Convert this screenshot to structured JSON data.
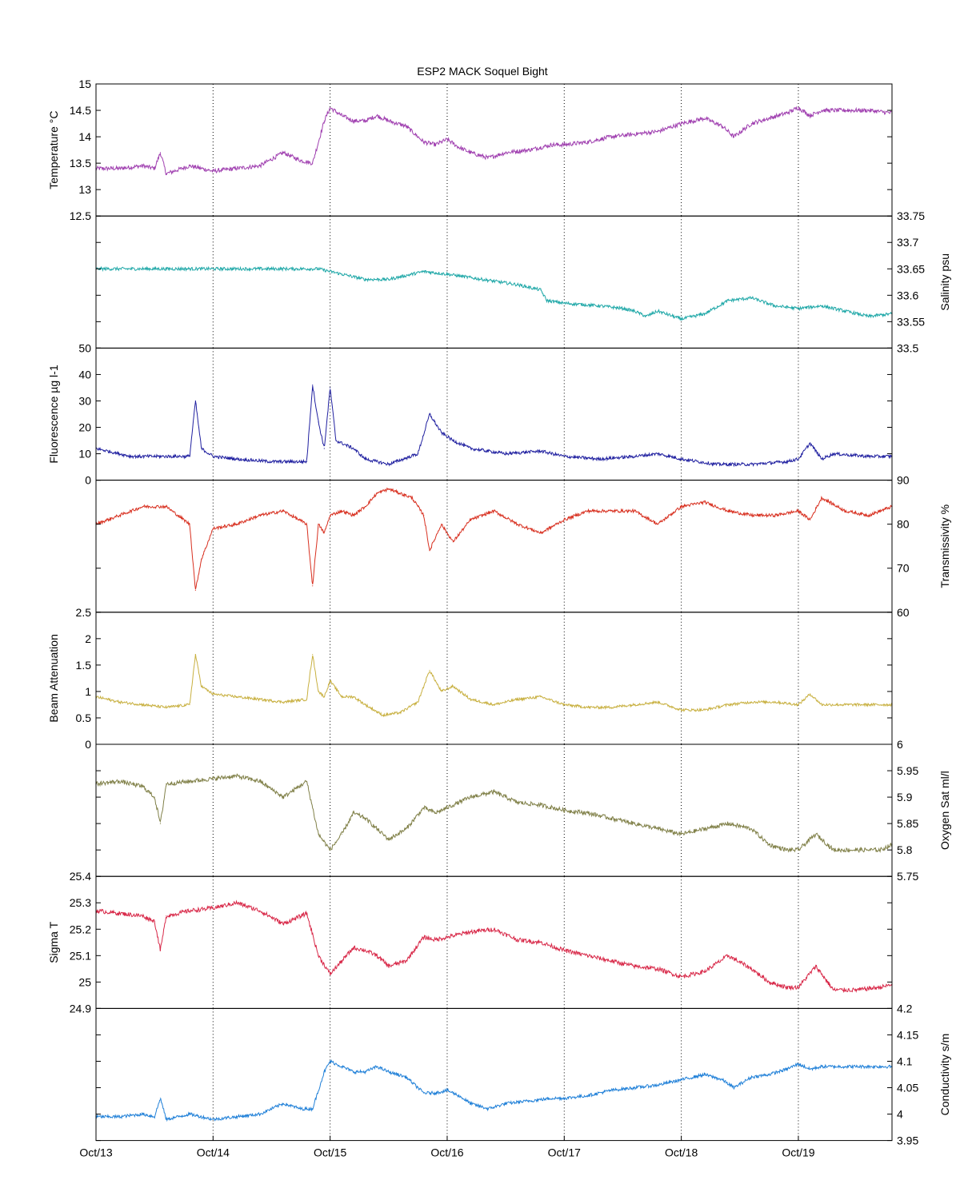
{
  "chart_data": {
    "type": "line",
    "title": "ESP2 MACK  Soquel Bight",
    "x_ticks": [
      "Oct/13",
      "Oct/14",
      "Oct/15",
      "Oct/16",
      "Oct/17",
      "Oct/18",
      "Oct/19"
    ],
    "x_range_days": [
      13.0,
      19.8
    ],
    "grid": "vertical dotted lines at each day",
    "panels": [
      {
        "key": "temperature",
        "ylabel": "Temperature °C",
        "axis_side": "left",
        "ylim": [
          12.5,
          15
        ],
        "yticks": [
          "12.5",
          "13",
          "13.5",
          "14",
          "14.5",
          "15"
        ],
        "color": "#a040b0",
        "noise": 0.04,
        "x": [
          13.0,
          13.2,
          13.4,
          13.5,
          13.55,
          13.6,
          13.8,
          14.0,
          14.2,
          14.4,
          14.6,
          14.75,
          14.85,
          14.95,
          15.0,
          15.1,
          15.2,
          15.3,
          15.4,
          15.5,
          15.65,
          15.8,
          15.9,
          16.0,
          16.1,
          16.2,
          16.35,
          16.5,
          16.7,
          16.9,
          17.0,
          17.2,
          17.4,
          17.6,
          17.8,
          18.0,
          18.2,
          18.35,
          18.45,
          18.6,
          18.75,
          18.9,
          19.0,
          19.1,
          19.2,
          19.4,
          19.6,
          19.8
        ],
        "y": [
          13.4,
          13.4,
          13.45,
          13.4,
          13.7,
          13.3,
          13.45,
          13.35,
          13.4,
          13.45,
          13.7,
          13.55,
          13.5,
          14.3,
          14.55,
          14.4,
          14.3,
          14.3,
          14.4,
          14.3,
          14.2,
          13.9,
          13.85,
          13.95,
          13.8,
          13.7,
          13.6,
          13.7,
          13.75,
          13.85,
          13.85,
          13.9,
          14.0,
          14.05,
          14.1,
          14.25,
          14.35,
          14.2,
          14.0,
          14.25,
          14.35,
          14.45,
          14.55,
          14.4,
          14.5,
          14.5,
          14.5,
          14.45
        ]
      },
      {
        "key": "salinity",
        "ylabel": "Salinity psu",
        "axis_side": "right",
        "ylim": [
          33.5,
          33.75
        ],
        "yticks": [
          "33.5",
          "33.55",
          "33.6",
          "33.65",
          "33.7",
          "33.75"
        ],
        "color": "#20a8a8",
        "noise": 0.003,
        "x": [
          13.0,
          13.5,
          14.0,
          14.5,
          14.9,
          15.1,
          15.3,
          15.5,
          15.8,
          16.0,
          16.3,
          16.6,
          16.8,
          16.85,
          17.0,
          17.3,
          17.5,
          17.6,
          17.7,
          17.8,
          18.0,
          18.2,
          18.4,
          18.6,
          18.8,
          19.0,
          19.2,
          19.4,
          19.6,
          19.8
        ],
        "y": [
          33.65,
          33.65,
          33.65,
          33.65,
          33.65,
          33.64,
          33.63,
          33.63,
          33.645,
          33.64,
          33.63,
          33.62,
          33.61,
          33.59,
          33.585,
          33.58,
          33.575,
          33.57,
          33.56,
          33.57,
          33.555,
          33.565,
          33.59,
          33.595,
          33.58,
          33.575,
          33.58,
          33.57,
          33.56,
          33.565
        ]
      },
      {
        "key": "fluorescence",
        "ylabel": "Fluorescence µg l-1",
        "axis_side": "left",
        "ylim": [
          0,
          50
        ],
        "yticks": [
          "0",
          "10",
          "20",
          "30",
          "40",
          "50"
        ],
        "color": "#2020a0",
        "noise": 0.6,
        "x": [
          13.0,
          13.3,
          13.5,
          13.8,
          13.85,
          13.9,
          14.0,
          14.2,
          14.5,
          14.8,
          14.85,
          14.9,
          14.95,
          15.0,
          15.05,
          15.2,
          15.3,
          15.5,
          15.75,
          15.85,
          15.95,
          16.05,
          16.2,
          16.5,
          16.8,
          17.0,
          17.3,
          17.6,
          17.8,
          18.0,
          18.3,
          18.6,
          18.9,
          19.0,
          19.1,
          19.2,
          19.3,
          19.6,
          19.8
        ],
        "y": [
          12,
          9,
          9,
          9,
          30,
          12,
          9,
          8,
          7,
          7,
          36,
          22,
          12,
          35,
          15,
          12,
          8,
          6,
          10,
          25,
          18,
          15,
          12,
          10,
          11,
          9,
          8,
          9,
          10,
          8,
          6,
          6,
          7,
          8,
          14,
          8,
          10,
          9,
          9
        ]
      },
      {
        "key": "transmissivity",
        "ylabel": "Transmissivity %",
        "axis_side": "right",
        "ylim": [
          60,
          90
        ],
        "yticks": [
          "60",
          "70",
          "80",
          "90"
        ],
        "color": "#d83020",
        "noise": 0.35,
        "x": [
          13.0,
          13.2,
          13.4,
          13.6,
          13.8,
          13.85,
          13.9,
          14.0,
          14.2,
          14.4,
          14.6,
          14.8,
          14.85,
          14.9,
          14.95,
          15.0,
          15.1,
          15.2,
          15.3,
          15.4,
          15.5,
          15.7,
          15.8,
          15.85,
          15.95,
          16.05,
          16.2,
          16.4,
          16.6,
          16.8,
          17.0,
          17.2,
          17.4,
          17.6,
          17.8,
          18.0,
          18.2,
          18.4,
          18.6,
          18.8,
          19.0,
          19.1,
          19.2,
          19.4,
          19.6,
          19.8
        ],
        "y": [
          80,
          82,
          84,
          84,
          80,
          65,
          72,
          79,
          80,
          82,
          83,
          80,
          66,
          80,
          78,
          82,
          83,
          82,
          84,
          87,
          88,
          86,
          82,
          74,
          80,
          76,
          81,
          83,
          80,
          78,
          81,
          83,
          83,
          83,
          80,
          84,
          85,
          83,
          82,
          82,
          83,
          81,
          86,
          83,
          82,
          84
        ]
      },
      {
        "key": "beam_attenuation",
        "ylabel": "Beam Attenuation",
        "axis_side": "left",
        "ylim": [
          0,
          2.5
        ],
        "yticks": [
          "0",
          "0.5",
          "1",
          "1.5",
          "2",
          "2.5"
        ],
        "color": "#c8b040",
        "noise": 0.025,
        "x": [
          13.0,
          13.2,
          13.4,
          13.6,
          13.8,
          13.85,
          13.9,
          14.0,
          14.2,
          14.4,
          14.6,
          14.8,
          14.85,
          14.9,
          14.95,
          15.0,
          15.1,
          15.2,
          15.3,
          15.45,
          15.6,
          15.75,
          15.85,
          15.95,
          16.05,
          16.2,
          16.4,
          16.6,
          16.8,
          17.0,
          17.2,
          17.4,
          17.6,
          17.8,
          18.0,
          18.2,
          18.4,
          18.6,
          18.8,
          19.0,
          19.1,
          19.2,
          19.4,
          19.6,
          19.8
        ],
        "y": [
          0.9,
          0.8,
          0.75,
          0.7,
          0.75,
          1.7,
          1.1,
          0.95,
          0.9,
          0.85,
          0.8,
          0.85,
          1.7,
          1.0,
          0.9,
          1.2,
          0.9,
          0.9,
          0.75,
          0.55,
          0.6,
          0.8,
          1.4,
          1.0,
          1.1,
          0.85,
          0.75,
          0.85,
          0.9,
          0.75,
          0.7,
          0.7,
          0.75,
          0.8,
          0.65,
          0.65,
          0.75,
          0.8,
          0.8,
          0.75,
          0.95,
          0.75,
          0.75,
          0.75,
          0.75
        ]
      },
      {
        "key": "oxygen_sat",
        "ylabel": "Oxygen Sat ml/l",
        "axis_side": "right",
        "ylim": [
          5.75,
          6
        ],
        "yticks": [
          "5.75",
          "5.8",
          "5.85",
          "5.9",
          "5.95",
          "6"
        ],
        "color": "#808048",
        "noise": 0.004,
        "x": [
          13.0,
          13.2,
          13.4,
          13.5,
          13.55,
          13.6,
          13.8,
          14.0,
          14.2,
          14.4,
          14.6,
          14.8,
          14.9,
          15.0,
          15.1,
          15.2,
          15.3,
          15.4,
          15.5,
          15.65,
          15.8,
          15.9,
          16.0,
          16.2,
          16.4,
          16.6,
          16.8,
          17.0,
          17.2,
          17.4,
          17.6,
          17.8,
          18.0,
          18.2,
          18.4,
          18.6,
          18.75,
          18.9,
          19.0,
          19.15,
          19.3,
          19.5,
          19.7,
          19.8
        ],
        "y": [
          5.925,
          5.93,
          5.92,
          5.9,
          5.85,
          5.925,
          5.93,
          5.935,
          5.94,
          5.93,
          5.9,
          5.93,
          5.83,
          5.8,
          5.83,
          5.87,
          5.86,
          5.84,
          5.82,
          5.84,
          5.88,
          5.87,
          5.88,
          5.9,
          5.91,
          5.89,
          5.885,
          5.875,
          5.87,
          5.86,
          5.85,
          5.84,
          5.83,
          5.84,
          5.85,
          5.84,
          5.81,
          5.8,
          5.8,
          5.83,
          5.8,
          5.8,
          5.8,
          5.81
        ]
      },
      {
        "key": "sigma_t",
        "ylabel": "Sigma T",
        "axis_side": "left",
        "ylim": [
          24.9,
          25.4
        ],
        "yticks": [
          "24.9",
          "25",
          "25.1",
          "25.2",
          "25.3",
          "25.4"
        ],
        "color": "#d82848",
        "noise": 0.008,
        "x": [
          13.0,
          13.2,
          13.4,
          13.5,
          13.55,
          13.6,
          13.8,
          14.0,
          14.2,
          14.4,
          14.6,
          14.8,
          14.9,
          15.0,
          15.1,
          15.2,
          15.3,
          15.4,
          15.5,
          15.65,
          15.8,
          15.9,
          16.0,
          16.2,
          16.4,
          16.6,
          16.8,
          17.0,
          17.2,
          17.4,
          17.6,
          17.8,
          18.0,
          18.2,
          18.4,
          18.6,
          18.75,
          18.9,
          19.0,
          19.15,
          19.3,
          19.5,
          19.7,
          19.8
        ],
        "y": [
          25.27,
          25.26,
          25.25,
          25.23,
          25.12,
          25.25,
          25.27,
          25.28,
          25.3,
          25.27,
          25.22,
          25.26,
          25.1,
          25.03,
          25.08,
          25.13,
          25.12,
          25.1,
          25.06,
          25.08,
          25.17,
          25.16,
          25.17,
          25.19,
          25.2,
          25.16,
          25.15,
          25.12,
          25.1,
          25.08,
          25.06,
          25.05,
          25.02,
          25.04,
          25.1,
          25.05,
          25.0,
          24.98,
          24.98,
          25.06,
          24.97,
          24.97,
          24.98,
          24.99
        ]
      },
      {
        "key": "conductivity",
        "ylabel": "Conductivity s/m",
        "axis_side": "right",
        "ylim": [
          3.95,
          4.2
        ],
        "yticks": [
          "3.95",
          "4",
          "4.05",
          "4.1",
          "4.15",
          "4.2"
        ],
        "color": "#2080d8",
        "noise": 0.003,
        "x": [
          13.0,
          13.2,
          13.4,
          13.5,
          13.55,
          13.6,
          13.8,
          14.0,
          14.2,
          14.4,
          14.6,
          14.75,
          14.85,
          14.95,
          15.0,
          15.1,
          15.2,
          15.3,
          15.4,
          15.5,
          15.65,
          15.8,
          15.9,
          16.0,
          16.1,
          16.2,
          16.35,
          16.5,
          16.7,
          16.9,
          17.0,
          17.2,
          17.4,
          17.6,
          17.8,
          18.0,
          18.2,
          18.35,
          18.45,
          18.6,
          18.75,
          18.9,
          19.0,
          19.1,
          19.2,
          19.4,
          19.6,
          19.8
        ],
        "y": [
          3.995,
          3.995,
          4.0,
          3.995,
          4.03,
          3.99,
          4.0,
          3.99,
          3.995,
          4.0,
          4.02,
          4.01,
          4.01,
          4.08,
          4.1,
          4.09,
          4.08,
          4.08,
          4.09,
          4.08,
          4.07,
          4.04,
          4.04,
          4.045,
          4.035,
          4.02,
          4.01,
          4.02,
          4.025,
          4.03,
          4.03,
          4.035,
          4.045,
          4.05,
          4.055,
          4.065,
          4.075,
          4.065,
          4.05,
          4.07,
          4.075,
          4.085,
          4.095,
          4.085,
          4.09,
          4.09,
          4.09,
          4.09
        ]
      }
    ]
  }
}
